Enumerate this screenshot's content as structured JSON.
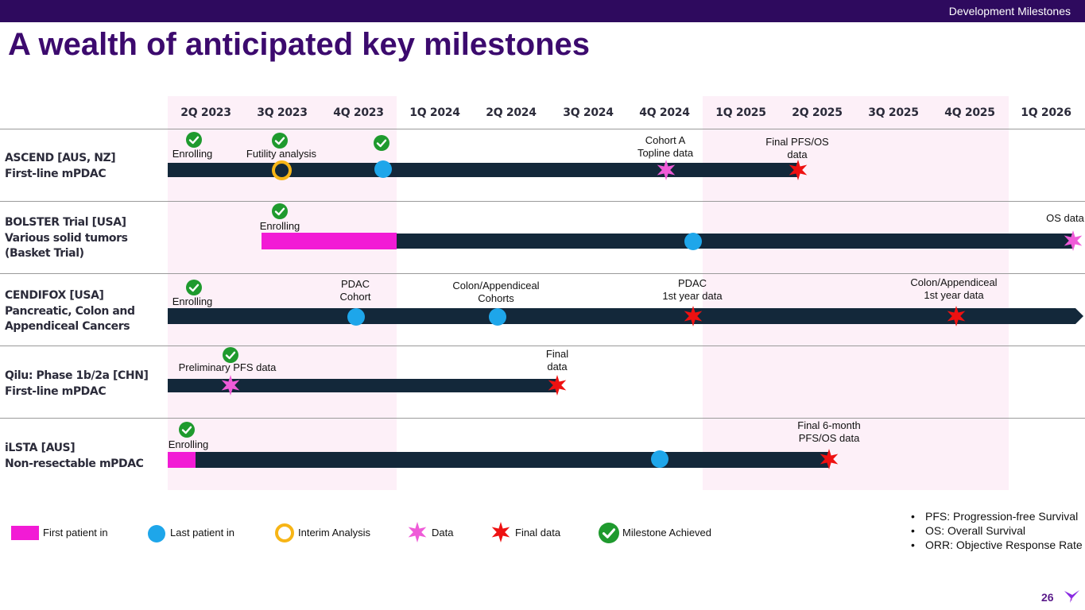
{
  "header": {
    "section_label": "Development Milestones"
  },
  "title": "A wealth of anticipated key milestones",
  "quarters": [
    "2Q 2023",
    "3Q 2023",
    "4Q 2023",
    "1Q 2024",
    "2Q 2024",
    "3Q 2024",
    "4Q 2024",
    "1Q 2025",
    "2Q 2025",
    "3Q 2025",
    "4Q 2025",
    "1Q 2026"
  ],
  "rows": [
    {
      "line1": "ASCEND [AUS, NZ]",
      "line2": "First-line mPDAC",
      "line3": "",
      "annotations": {
        "enrolling": "Enrolling",
        "futility": "Futility analysis",
        "cohort_a_1": "Cohort A",
        "cohort_a_2": "Topline data",
        "final_1": "Final PFS/OS",
        "final_2": "data"
      }
    },
    {
      "line1": "BOLSTER Trial [USA]",
      "line2": "Various solid tumors",
      "line3": "(Basket Trial)",
      "annotations": {
        "enrolling": "Enrolling",
        "os_data": "OS data"
      }
    },
    {
      "line1": "CENDIFOX [USA]",
      "line2": "Pancreatic, Colon and",
      "line3": "Appendiceal Cancers",
      "annotations": {
        "enrolling": "Enrolling",
        "pdac_cohort_1": "PDAC",
        "pdac_cohort_2": "Cohort",
        "colon_cohorts_1": "Colon/Appendiceal",
        "colon_cohorts_2": "Cohorts",
        "pdac_year_1": "PDAC",
        "pdac_year_2": "1st year data",
        "colon_year_1": "Colon/Appendiceal",
        "colon_year_2": "1st year data"
      }
    },
    {
      "line1": "Qilu: Phase 1b/2a [CHN]",
      "line2": "First-line mPDAC",
      "line3": "",
      "annotations": {
        "prelim": "Preliminary PFS data",
        "final_1": "Final",
        "final_2": "data"
      }
    },
    {
      "line1": "iLSTA [AUS]",
      "line2": "Non-resectable mPDAC",
      "line3": "",
      "annotations": {
        "enrolling": "Enrolling",
        "final_1": "Final 6-month",
        "final_2": "PFS/OS data"
      }
    }
  ],
  "legend": {
    "first_patient_in": "First patient in",
    "last_patient_in": "Last patient in",
    "interim_analysis": "Interim Analysis",
    "data": "Data",
    "final_data": "Final data",
    "milestone_achieved": "Milestone Achieved"
  },
  "definitions": [
    "PFS: Progression-free Survival",
    "OS: Overall Survival",
    "ORR: Objective Response Rate"
  ],
  "page_number": "26",
  "colors": {
    "header_bg": "#2e0a5e",
    "title": "#3c0a6e",
    "bar": "#13283a",
    "first_patient_in": "#f21bd5",
    "last_patient_in": "#1ea6ea",
    "interim": "#f7b516",
    "data_star": "#ef5bd8",
    "final_star": "#ee1111",
    "check": "#1f9a2e",
    "band": "#fdf0f8"
  },
  "icons": [
    "check-icon",
    "data-star-icon",
    "final-star-icon",
    "logo-icon"
  ]
}
